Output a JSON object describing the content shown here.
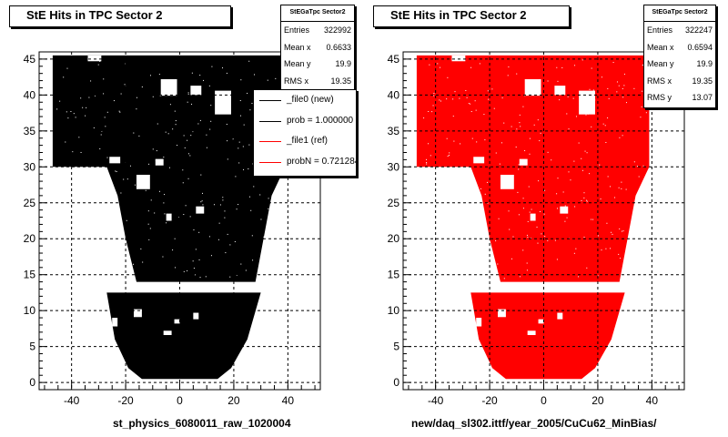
{
  "chart_data": [
    {
      "type": "heatmap",
      "title": "StE Hits in TPC Sector 2",
      "xlabel": "st_physics_6080011_raw_1020004",
      "ylabel": "",
      "xlim": [
        -52,
        52
      ],
      "ylim": [
        -1,
        46
      ],
      "xticks": [
        -40,
        -20,
        0,
        20,
        40
      ],
      "yticks": [
        0,
        5,
        10,
        15,
        20,
        25,
        30,
        35,
        40,
        45
      ],
      "grid": true,
      "fill_color": "#000000",
      "stats": {
        "title": "StEGaTpc Sector2",
        "rows": [
          [
            "Entries",
            "322992"
          ],
          [
            "Mean x",
            "0.6633"
          ],
          [
            "Mean y",
            "19.9"
          ],
          [
            "RMS x",
            "19.35"
          ]
        ]
      },
      "legend": {
        "placement": "top-right",
        "entries": [
          {
            "label": "_file0 (new)",
            "color": "#000000"
          },
          {
            "label": "prob = 1.000000",
            "color": "#000000"
          },
          {
            "label": "_file1 (ref)",
            "color": "#ff0000"
          },
          {
            "label": "probN = 0.721284",
            "color": "#ff0000"
          }
        ]
      }
    },
    {
      "type": "heatmap",
      "title": "StE Hits in TPC Sector 2",
      "xlabel": "new/daq_sl302.ittf/year_2005/CuCu62_MinBias/",
      "ylabel": "",
      "xlim": [
        -52,
        52
      ],
      "ylim": [
        -1,
        46
      ],
      "xticks": [
        -40,
        -20,
        0,
        20,
        40
      ],
      "yticks": [
        0,
        5,
        10,
        15,
        20,
        25,
        30,
        35,
        40,
        45
      ],
      "grid": true,
      "fill_color": "#ff0000",
      "stats": {
        "title": "StEGaTpc Sector2",
        "rows": [
          [
            "Entries",
            "322247"
          ],
          [
            "Mean x",
            "0.6594"
          ],
          [
            "Mean y",
            "19.9"
          ],
          [
            "RMS x",
            "19.35"
          ],
          [
            "RMS y",
            "13.07"
          ]
        ]
      }
    }
  ]
}
